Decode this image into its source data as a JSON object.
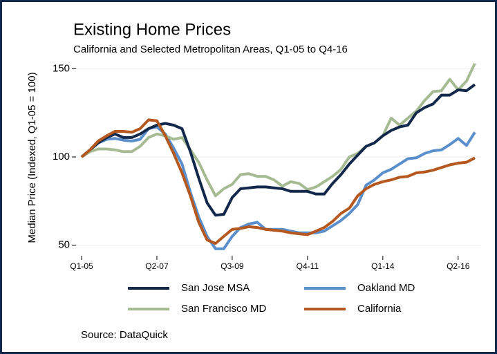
{
  "chart_data": {
    "type": "line",
    "title": "Existing Home Prices",
    "subtitle": "California and Selected Metropolitan Areas, Q1-05 to Q4-16",
    "y_label": "Median Price (Indexed, Q1-05 = 100)",
    "source": "Source: DataQuick",
    "categories": [
      "Q1-05",
      null,
      null,
      null,
      null,
      null,
      null,
      null,
      null,
      "Q2-07",
      null,
      null,
      null,
      null,
      null,
      null,
      null,
      null,
      "Q3-09",
      null,
      null,
      null,
      null,
      null,
      null,
      null,
      null,
      "Q4-11",
      null,
      null,
      null,
      null,
      null,
      null,
      null,
      null,
      "Q1-14",
      null,
      null,
      null,
      null,
      null,
      null,
      null,
      null,
      "Q2-16",
      null,
      null
    ],
    "ylim": [
      44,
      156
    ],
    "yticks": [
      50,
      100,
      150
    ],
    "grid": true,
    "series": [
      {
        "name": "San Jose MSA",
        "color": "#13294b",
        "values": [
          100,
          104,
          108,
          111,
          113,
          111,
          111,
          113,
          116,
          118,
          119,
          118,
          116,
          103,
          88,
          74,
          67,
          67.5,
          77,
          82,
          82.5,
          83,
          83,
          82.5,
          82,
          80.5,
          80.5,
          80.5,
          79,
          79,
          85,
          90,
          96,
          101,
          106,
          108,
          112,
          115,
          117,
          118,
          125,
          128,
          130,
          135,
          135,
          138,
          137.5,
          141
        ]
      },
      {
        "name": "Oakland MD",
        "color": "#5b8fcc",
        "values": [
          100,
          104,
          108,
          110,
          110.5,
          109.5,
          109,
          110,
          116,
          117,
          113,
          105,
          96,
          80,
          66,
          55,
          48,
          48,
          55,
          60,
          62,
          63,
          59,
          59,
          59,
          58,
          57,
          57,
          57,
          58,
          61,
          64,
          68,
          73,
          84,
          87,
          91,
          93,
          96,
          99,
          99.5,
          102,
          103.5,
          104,
          107,
          110.5,
          106.5,
          114
        ]
      },
      {
        "name": "San Francisco MD",
        "color": "#a6bb92",
        "values": [
          100,
          103,
          104.5,
          104.5,
          104,
          103,
          103,
          106,
          111,
          113,
          112,
          110,
          111,
          104,
          97,
          87,
          78,
          82,
          84.5,
          90,
          90.5,
          89,
          89,
          87,
          83.5,
          86,
          85,
          81.5,
          83,
          86,
          89,
          93,
          100,
          102,
          106,
          108,
          112,
          122,
          118,
          122,
          126,
          132,
          137,
          137.5,
          144,
          138,
          143,
          153
        ]
      },
      {
        "name": "California",
        "color": "#b5581f",
        "values": [
          100,
          104,
          109,
          112,
          114.5,
          114.5,
          114,
          116,
          121,
          120.5,
          112,
          102,
          91,
          78,
          63,
          53,
          51,
          55,
          59,
          59.5,
          60.5,
          60,
          59,
          58.5,
          58,
          57,
          56.5,
          56,
          58,
          60,
          63.5,
          68,
          71,
          78,
          82,
          84.5,
          86,
          87,
          88.5,
          89,
          91,
          91.5,
          92.5,
          94,
          95.5,
          96.5,
          97,
          99.5
        ]
      }
    ]
  }
}
